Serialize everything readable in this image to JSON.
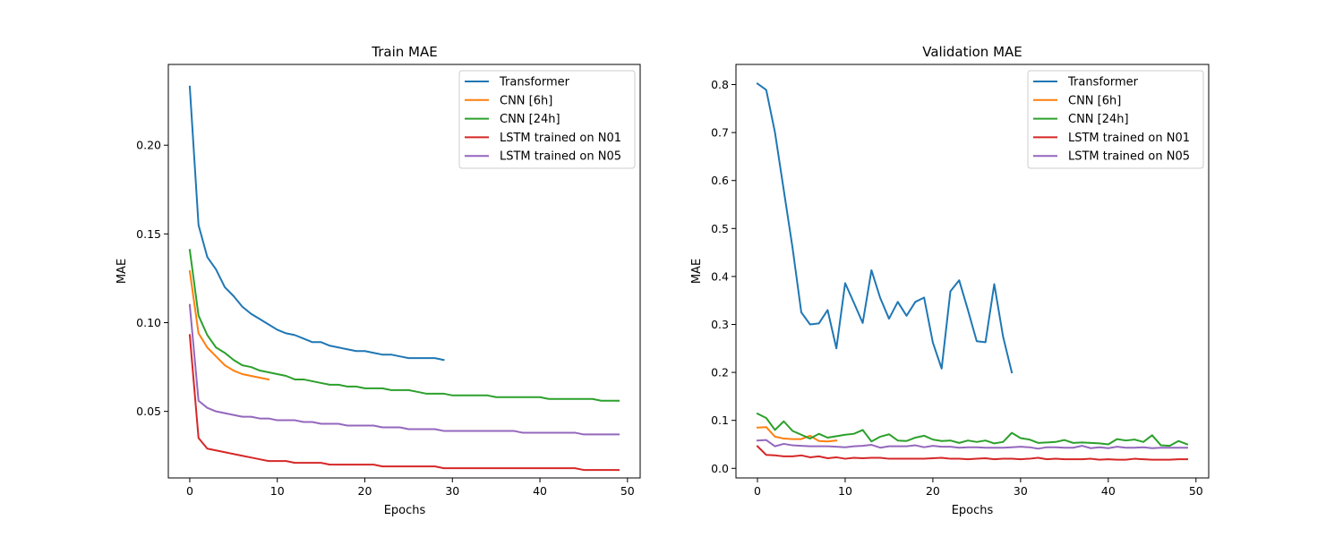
{
  "chart_data": [
    {
      "type": "line",
      "title": "Train MAE",
      "xlabel": "Epochs",
      "ylabel": "MAE",
      "xlim": [
        -2.45,
        51.45
      ],
      "ylim": [
        0.0125,
        0.2455
      ],
      "xticks": [
        0,
        10,
        20,
        30,
        40,
        50
      ],
      "xtick_labels": [
        "0",
        "10",
        "20",
        "30",
        "40",
        "50"
      ],
      "yticks": [
        0.05,
        0.1,
        0.15,
        0.2
      ],
      "ytick_labels": [
        "0.05",
        "0.10",
        "0.15",
        "0.20"
      ],
      "grid": false,
      "legend_position": "upper right",
      "series": [
        {
          "name": "Transformer",
          "color": "#1f77b4",
          "x_start": 0,
          "values": [
            0.233,
            0.155,
            0.137,
            0.13,
            0.12,
            0.115,
            0.109,
            0.105,
            0.102,
            0.099,
            0.096,
            0.094,
            0.093,
            0.091,
            0.089,
            0.089,
            0.087,
            0.086,
            0.085,
            0.084,
            0.084,
            0.083,
            0.082,
            0.082,
            0.081,
            0.08,
            0.08,
            0.08,
            0.08,
            0.079
          ]
        },
        {
          "name": "CNN [6h]",
          "color": "#ff7f0e",
          "x_start": 0,
          "values": [
            0.129,
            0.094,
            0.086,
            0.081,
            0.076,
            0.073,
            0.071,
            0.07,
            0.069,
            0.068
          ]
        },
        {
          "name": "CNN [24h]",
          "color": "#2ca02c",
          "x_start": 0,
          "values": [
            0.141,
            0.104,
            0.093,
            0.086,
            0.083,
            0.079,
            0.076,
            0.075,
            0.073,
            0.072,
            0.071,
            0.07,
            0.068,
            0.068,
            0.067,
            0.066,
            0.065,
            0.065,
            0.064,
            0.064,
            0.063,
            0.063,
            0.063,
            0.062,
            0.062,
            0.062,
            0.061,
            0.06,
            0.06,
            0.06,
            0.059,
            0.059,
            0.059,
            0.059,
            0.059,
            0.058,
            0.058,
            0.058,
            0.058,
            0.058,
            0.058,
            0.057,
            0.057,
            0.057,
            0.057,
            0.057,
            0.057,
            0.056,
            0.056,
            0.056
          ]
        },
        {
          "name": "LSTM trained on N01",
          "color": "#d62728",
          "x_start": 0,
          "values": [
            0.093,
            0.035,
            0.029,
            0.028,
            0.027,
            0.026,
            0.025,
            0.024,
            0.023,
            0.022,
            0.022,
            0.022,
            0.021,
            0.021,
            0.021,
            0.021,
            0.02,
            0.02,
            0.02,
            0.02,
            0.02,
            0.02,
            0.019,
            0.019,
            0.019,
            0.019,
            0.019,
            0.019,
            0.019,
            0.018,
            0.018,
            0.018,
            0.018,
            0.018,
            0.018,
            0.018,
            0.018,
            0.018,
            0.018,
            0.018,
            0.018,
            0.018,
            0.018,
            0.018,
            0.018,
            0.017,
            0.017,
            0.017,
            0.017,
            0.017
          ]
        },
        {
          "name": "LSTM trained on N05",
          "color": "#9467bd",
          "x_start": 0,
          "values": [
            0.11,
            0.056,
            0.052,
            0.05,
            0.049,
            0.048,
            0.047,
            0.047,
            0.046,
            0.046,
            0.045,
            0.045,
            0.045,
            0.044,
            0.044,
            0.043,
            0.043,
            0.043,
            0.042,
            0.042,
            0.042,
            0.042,
            0.041,
            0.041,
            0.041,
            0.04,
            0.04,
            0.04,
            0.04,
            0.039,
            0.039,
            0.039,
            0.039,
            0.039,
            0.039,
            0.039,
            0.039,
            0.039,
            0.038,
            0.038,
            0.038,
            0.038,
            0.038,
            0.038,
            0.038,
            0.037,
            0.037,
            0.037,
            0.037,
            0.037
          ]
        }
      ]
    },
    {
      "type": "line",
      "title": "Validation MAE",
      "xlabel": "Epochs",
      "ylabel": "MAE",
      "xlim": [
        -2.45,
        51.45
      ],
      "ylim": [
        -0.02,
        0.842
      ],
      "xticks": [
        0,
        10,
        20,
        30,
        40,
        50
      ],
      "xtick_labels": [
        "0",
        "10",
        "20",
        "30",
        "40",
        "50"
      ],
      "yticks": [
        0.0,
        0.1,
        0.2,
        0.3,
        0.4,
        0.5,
        0.6,
        0.7,
        0.8
      ],
      "ytick_labels": [
        "0.0",
        "0.1",
        "0.2",
        "0.3",
        "0.4",
        "0.5",
        "0.6",
        "0.7",
        "0.8"
      ],
      "grid": false,
      "legend_position": "upper right",
      "series": [
        {
          "name": "Transformer",
          "color": "#1f77b4",
          "x_start": 0,
          "values": [
            0.802,
            0.789,
            0.7,
            0.58,
            0.46,
            0.325,
            0.3,
            0.302,
            0.33,
            0.25,
            0.386,
            0.345,
            0.303,
            0.413,
            0.355,
            0.312,
            0.347,
            0.318,
            0.347,
            0.356,
            0.262,
            0.208,
            0.369,
            0.392,
            0.33,
            0.265,
            0.263,
            0.384,
            0.275,
            0.2
          ]
        },
        {
          "name": "CNN [6h]",
          "color": "#ff7f0e",
          "x_start": 0,
          "values": [
            0.085,
            0.086,
            0.066,
            0.062,
            0.061,
            0.061,
            0.068,
            0.057,
            0.056,
            0.058
          ]
        },
        {
          "name": "CNN [24h]",
          "color": "#2ca02c",
          "x_start": 0,
          "values": [
            0.114,
            0.105,
            0.08,
            0.098,
            0.078,
            0.07,
            0.062,
            0.072,
            0.064,
            0.067,
            0.07,
            0.072,
            0.08,
            0.056,
            0.066,
            0.071,
            0.058,
            0.057,
            0.064,
            0.068,
            0.06,
            0.057,
            0.058,
            0.053,
            0.058,
            0.055,
            0.058,
            0.052,
            0.055,
            0.074,
            0.063,
            0.06,
            0.053,
            0.054,
            0.055,
            0.059,
            0.053,
            0.054,
            0.053,
            0.052,
            0.05,
            0.061,
            0.058,
            0.06,
            0.055,
            0.069,
            0.048,
            0.047,
            0.057,
            0.05
          ]
        },
        {
          "name": "LSTM trained on N01",
          "color": "#d62728",
          "x_start": 0,
          "values": [
            0.046,
            0.028,
            0.027,
            0.025,
            0.025,
            0.027,
            0.023,
            0.025,
            0.021,
            0.023,
            0.02,
            0.022,
            0.021,
            0.022,
            0.022,
            0.02,
            0.02,
            0.02,
            0.02,
            0.02,
            0.021,
            0.022,
            0.02,
            0.02,
            0.019,
            0.02,
            0.021,
            0.019,
            0.02,
            0.02,
            0.019,
            0.02,
            0.022,
            0.019,
            0.02,
            0.019,
            0.019,
            0.019,
            0.02,
            0.018,
            0.019,
            0.018,
            0.018,
            0.02,
            0.019,
            0.018,
            0.018,
            0.018,
            0.019,
            0.019
          ]
        },
        {
          "name": "LSTM trained on N05",
          "color": "#9467bd",
          "x_start": 0,
          "values": [
            0.058,
            0.059,
            0.046,
            0.051,
            0.048,
            0.047,
            0.046,
            0.046,
            0.046,
            0.045,
            0.044,
            0.046,
            0.047,
            0.049,
            0.043,
            0.046,
            0.046,
            0.046,
            0.048,
            0.044,
            0.047,
            0.045,
            0.045,
            0.043,
            0.044,
            0.044,
            0.043,
            0.043,
            0.043,
            0.044,
            0.045,
            0.044,
            0.041,
            0.044,
            0.044,
            0.043,
            0.043,
            0.047,
            0.042,
            0.044,
            0.042,
            0.045,
            0.043,
            0.043,
            0.044,
            0.042,
            0.043,
            0.043,
            0.043,
            0.043
          ]
        }
      ]
    }
  ]
}
